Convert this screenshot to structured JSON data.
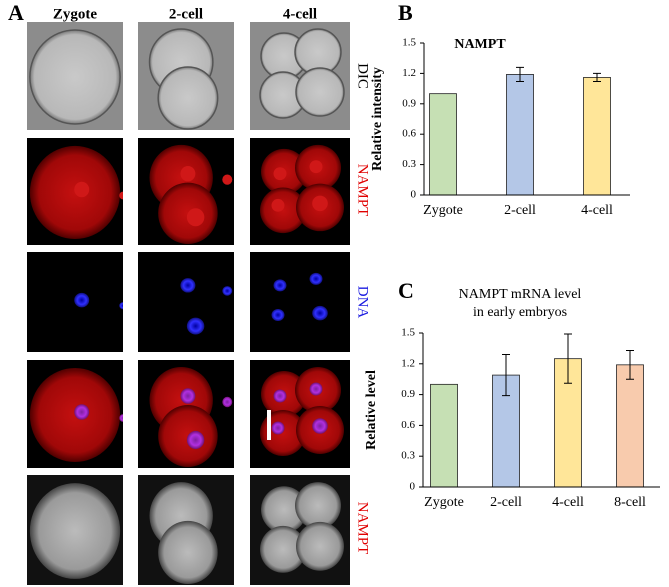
{
  "panels": {
    "a_label": "A",
    "b_label": "B",
    "c_label": "C",
    "columns": [
      "Zygote",
      "2-cell",
      "4-cell"
    ],
    "rows": [
      {
        "label": "DIC",
        "color": "#000000"
      },
      {
        "label": "NAMPT",
        "color": "#e00000"
      },
      {
        "label": "DNA",
        "color": "#1a1ae0"
      },
      {
        "label": "NAMPT",
        "color": "#e00000"
      }
    ]
  },
  "chart_data": [
    {
      "type": "bar",
      "title": "NAMPT",
      "ylabel": "Relative intensity",
      "categories": [
        "Zygote",
        "2-cell",
        "4-cell"
      ],
      "values": [
        1.0,
        1.19,
        1.16
      ],
      "errors": [
        0,
        0.07,
        0.04
      ],
      "colors": [
        "#c6e0b4",
        "#b4c7e7",
        "#ffe699"
      ],
      "ylim": [
        0,
        1.5
      ],
      "yticks": [
        0,
        0.3,
        0.6,
        0.9,
        1.2,
        1.5
      ]
    },
    {
      "type": "bar",
      "title": [
        "NAMPT mRNA level",
        "in early embryos"
      ],
      "ylabel": "Relative level",
      "categories": [
        "Zygote",
        "2-cell",
        "4-cell",
        "8-cell"
      ],
      "values": [
        1.0,
        1.09,
        1.25,
        1.19
      ],
      "errors": [
        0,
        0.2,
        0.24,
        0.14
      ],
      "colors": [
        "#c6e0b4",
        "#b4c7e7",
        "#ffe699",
        "#f8cbad"
      ],
      "ylim": [
        0,
        1.5
      ],
      "yticks": [
        0,
        0.3,
        0.6,
        0.9,
        1.2,
        1.5
      ]
    }
  ]
}
